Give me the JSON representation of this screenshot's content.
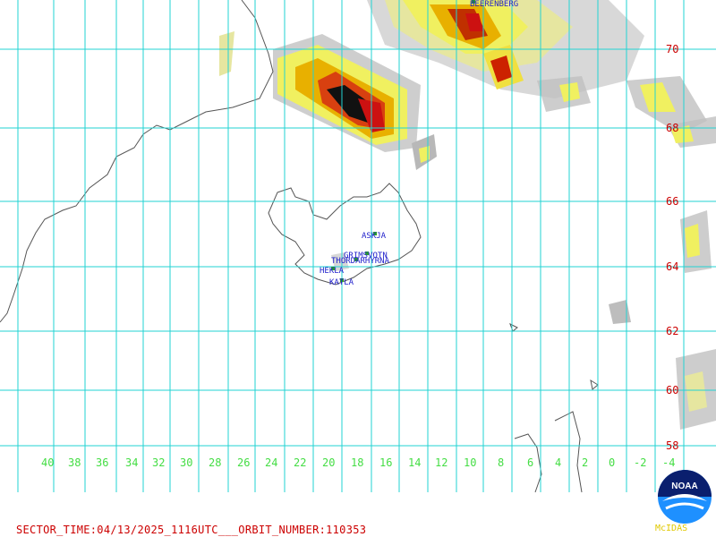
{
  "lat_labels": [
    "70",
    "68",
    "66",
    "64",
    "62",
    "60",
    "58"
  ],
  "lon_labels": [
    "40",
    "38",
    "36",
    "34",
    "32",
    "30",
    "28",
    "26",
    "24",
    "22",
    "20",
    "18",
    "16",
    "14",
    "12",
    "10",
    "8",
    "6",
    "4",
    "2",
    "0",
    "-2",
    "-4"
  ],
  "volcanoes": [
    {
      "name": "BEERENBERG"
    },
    {
      "name": "ASKJA"
    },
    {
      "name": "GRIMSVOTN"
    },
    {
      "name": "THORDARHYRNA"
    },
    {
      "name": "HEKLA"
    },
    {
      "name": "KATLA"
    }
  ],
  "footer_text": "SECTOR_TIME:04/13/2025_1116UTC___ORBIT_NUMBER:110353",
  "logo": {
    "name": "NOAA",
    "caption": "McIDAS"
  },
  "colors": {
    "grid": "#22d3d3",
    "lat_labels": "#cc0000",
    "lon_labels": "#44dd44",
    "volcano_labels": "#2222cc",
    "coast": "#555555"
  }
}
